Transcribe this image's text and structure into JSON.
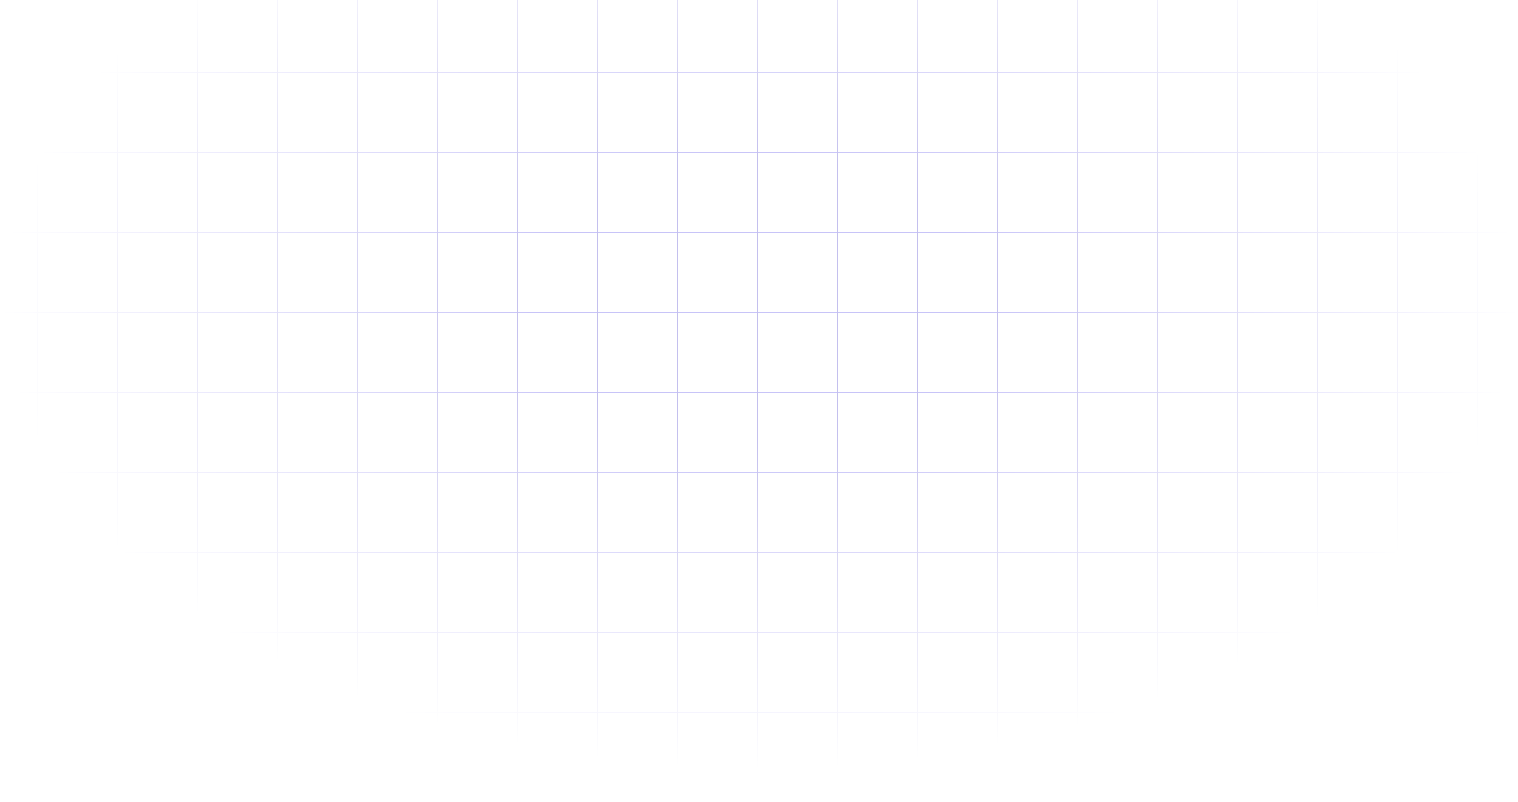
{
  "background": {
    "grid_line_color": "#c8c4f8",
    "grid_line_color_vertical": "#c4c0ee",
    "page_color": "#ffffff"
  }
}
